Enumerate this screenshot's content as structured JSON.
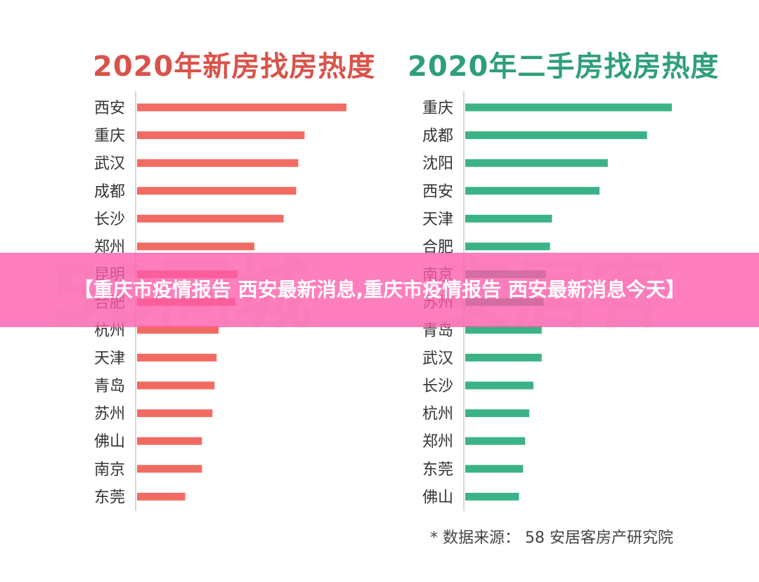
{
  "source_note": "* 数据来源： 58 安居客房产研究院",
  "banner_title": "【重庆市疫情报告 西安最新消息,重庆市疫情报告 西安最新消息今天】",
  "colors": {
    "new": "#f26b63",
    "second": "#3bb386",
    "title_new": "#d9534a",
    "title_second": "#2f9f7a"
  },
  "chart_data": [
    {
      "type": "bar",
      "orientation": "horizontal",
      "title": "2020年新房找房热度",
      "categories": [
        "西安",
        "重庆",
        "武汉",
        "成都",
        "长沙",
        "郑州",
        "昆明",
        "合肥",
        "杭州",
        "天津",
        "青岛",
        "苏州",
        "佛山",
        "南京",
        "东莞"
      ],
      "values": [
        100,
        80,
        77,
        76,
        70,
        56,
        48,
        47,
        39,
        38,
        37,
        36,
        31,
        31,
        23
      ],
      "xlabel": "",
      "ylabel": "",
      "grid": false
    },
    {
      "type": "bar",
      "orientation": "horizontal",
      "title": "2020年二手房找房热度",
      "categories": [
        "重庆",
        "成都",
        "沈阳",
        "西安",
        "天津",
        "合肥",
        "南京",
        "苏州",
        "青岛",
        "武汉",
        "长沙",
        "杭州",
        "郑州",
        "东莞",
        "佛山"
      ],
      "values": [
        100,
        88,
        69,
        65,
        42,
        41,
        39,
        38,
        37,
        37,
        33,
        31,
        29,
        28,
        26
      ],
      "xlabel": "",
      "ylabel": "",
      "grid": false
    }
  ]
}
